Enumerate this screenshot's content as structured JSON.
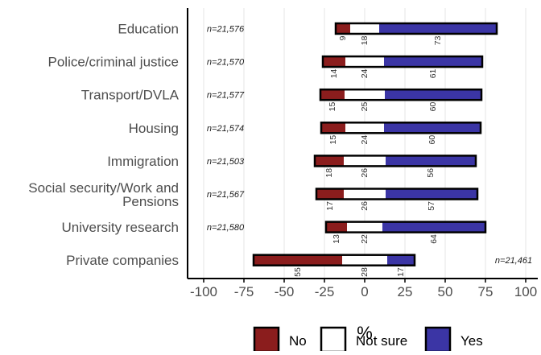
{
  "chart_data": {
    "type": "bar",
    "orientation": "horizontal",
    "stacked": true,
    "categories": [
      "Education",
      "Police/criminal justice",
      "Transport/DVLA",
      "Housing",
      "Immigration",
      "Social security/Work and Pensions",
      "University research",
      "Private companies"
    ],
    "sample_sizes": [
      "n=21,576",
      "n=21,570",
      "n=21,577",
      "n=21,574",
      "n=21,503",
      "n=21,567",
      "n=21,580",
      "n=21,461"
    ],
    "series": [
      {
        "name": "No",
        "color": "#8b1d1d",
        "values": [
          9,
          14,
          15,
          15,
          18,
          17,
          13,
          55
        ]
      },
      {
        "name": "Not sure",
        "color": "#ffffff",
        "values": [
          18,
          24,
          25,
          24,
          26,
          26,
          22,
          28
        ]
      },
      {
        "name": "Yes",
        "color": "#3b35a5",
        "values": [
          73,
          61,
          60,
          60,
          56,
          57,
          64,
          17
        ]
      }
    ],
    "xlabel": "%",
    "ylabel": "",
    "title": "",
    "xlim": [
      -100,
      100
    ],
    "x_ticks": [
      -100,
      -75,
      -50,
      -25,
      0,
      25,
      50,
      75,
      100
    ],
    "tick_labels": [
      "-100",
      "-75",
      "-50",
      "-25",
      "0",
      "25",
      "50",
      "75",
      "100"
    ],
    "grid": true,
    "legend_position": "bottom"
  }
}
